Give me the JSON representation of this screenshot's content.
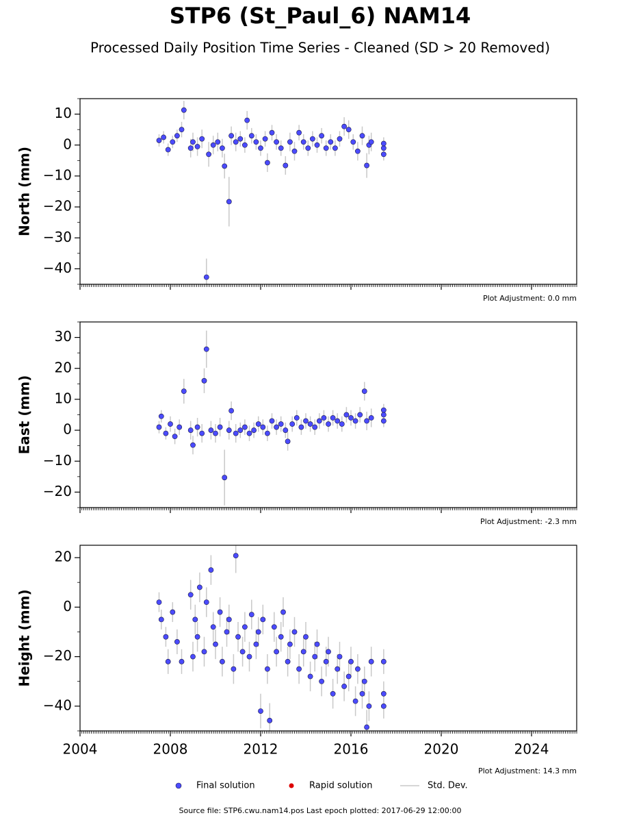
{
  "title": "STP6 (St_Paul_6) NAM14",
  "subtitle": "Processed Daily Position Time Series - Cleaned (SD > 20 Removed)",
  "legend": [
    {
      "name": "Final solution",
      "color": "#4b4bff",
      "marker": "circle"
    },
    {
      "name": "Rapid solution",
      "color": "#dd0000",
      "marker": "dot"
    },
    {
      "name": "Std. Dev.",
      "color": "#c8c8c8",
      "marker": "line"
    }
  ],
  "source": "Source file: STP6.cwu.nam14.pos  Last epoch plotted: 2017-06-29 12:00:00",
  "chart_data": [
    {
      "type": "scatter",
      "ylabel": "North (mm)",
      "annotation": "Plot Adjustment: 0.0 mm",
      "xlim": [
        2004,
        2026
      ],
      "xticks": [
        2004,
        2008,
        2012,
        2016,
        2020,
        2024
      ],
      "show_xtick_labels": false,
      "ylim": [
        -45,
        15
      ],
      "yticks": [
        -40,
        -30,
        -20,
        -10,
        0,
        10
      ],
      "series": [
        {
          "color": "#4b4bff",
          "error_color": "#c8c8c8",
          "x": [
            2007.5,
            2007.7,
            2007.9,
            2008.1,
            2008.3,
            2008.5,
            2008.6,
            2008.9,
            2009.0,
            2009.2,
            2009.4,
            2009.6,
            2009.7,
            2009.9,
            2010.1,
            2010.3,
            2010.4,
            2010.6,
            2010.7,
            2010.9,
            2011.1,
            2011.3,
            2011.4,
            2011.6,
            2011.8,
            2012.0,
            2012.2,
            2012.3,
            2012.5,
            2012.7,
            2012.9,
            2013.1,
            2013.3,
            2013.5,
            2013.7,
            2013.9,
            2014.1,
            2014.3,
            2014.5,
            2014.7,
            2014.9,
            2015.1,
            2015.3,
            2015.5,
            2015.7,
            2015.9,
            2016.1,
            2016.3,
            2016.5,
            2016.7,
            2016.8,
            2016.9,
            2017.45,
            2017.45,
            2017.45
          ],
          "values": [
            1.5,
            2.5,
            -1.5,
            1,
            3,
            5,
            11.3,
            -1,
            1,
            -0.5,
            2,
            -42.7,
            -3,
            0,
            1,
            -1,
            -6.8,
            -18.3,
            3,
            1,
            2,
            0,
            8,
            3,
            1,
            -1,
            2,
            -5.7,
            4,
            1,
            -1,
            -6.6,
            1,
            -2,
            4,
            1,
            -1,
            2,
            0,
            3,
            -1,
            1,
            -1,
            2,
            6,
            5,
            1,
            -2,
            3,
            -6.6,
            0,
            1,
            -1,
            -3,
            0.5
          ],
          "errors": [
            2,
            2,
            2,
            2,
            2,
            2.5,
            3,
            3,
            3,
            3,
            3,
            6,
            4,
            3,
            3,
            3,
            4,
            8,
            3,
            3,
            2.5,
            2.5,
            3,
            2.5,
            2.5,
            2.5,
            2.5,
            3,
            2.5,
            2.5,
            2.5,
            3,
            3,
            3,
            2.5,
            2.5,
            2.5,
            2.5,
            2.5,
            2.5,
            2.5,
            2.5,
            2.5,
            2.5,
            3,
            3,
            2.5,
            3,
            3,
            4,
            3,
            3,
            2,
            2,
            2
          ]
        }
      ]
    },
    {
      "type": "scatter",
      "ylabel": "East (mm)",
      "annotation": "Plot Adjustment: -2.3 mm",
      "xlim": [
        2004,
        2026
      ],
      "xticks": [
        2004,
        2008,
        2012,
        2016,
        2020,
        2024
      ],
      "show_xtick_labels": false,
      "ylim": [
        -25,
        35
      ],
      "yticks": [
        -20,
        -10,
        0,
        10,
        20,
        30
      ],
      "series": [
        {
          "color": "#4b4bff",
          "error_color": "#c8c8c8",
          "x": [
            2007.5,
            2007.6,
            2007.8,
            2008.0,
            2008.2,
            2008.4,
            2008.6,
            2008.9,
            2009.0,
            2009.2,
            2009.4,
            2009.5,
            2009.6,
            2009.8,
            2010.0,
            2010.2,
            2010.4,
            2010.6,
            2010.7,
            2010.9,
            2011.1,
            2011.3,
            2011.5,
            2011.7,
            2011.9,
            2012.1,
            2012.3,
            2012.5,
            2012.7,
            2012.9,
            2013.1,
            2013.2,
            2013.4,
            2013.6,
            2013.8,
            2014.0,
            2014.2,
            2014.4,
            2014.6,
            2014.8,
            2015.0,
            2015.2,
            2015.4,
            2015.6,
            2015.8,
            2016.0,
            2016.2,
            2016.4,
            2016.6,
            2016.7,
            2016.9,
            2017.45,
            2017.45,
            2017.45
          ],
          "values": [
            1,
            4.5,
            -1,
            2,
            -2,
            1,
            12.6,
            0,
            -4.8,
            1,
            -1,
            16,
            26.2,
            0,
            -1,
            1,
            -15.3,
            0,
            6.3,
            -1,
            0,
            1,
            -1,
            0,
            2,
            1,
            -1,
            3,
            1,
            2,
            0,
            -3.6,
            2,
            4,
            1,
            3,
            2,
            1,
            3,
            4,
            2,
            4,
            3,
            2,
            5,
            4,
            3,
            5,
            12.6,
            3,
            4,
            6.5,
            3,
            5
          ],
          "errors": [
            2,
            2,
            2,
            2.5,
            2.5,
            2.5,
            4,
            3,
            3,
            3,
            3,
            4,
            6,
            3,
            3,
            3,
            9,
            3,
            3,
            3,
            2.5,
            2.5,
            2.5,
            2.5,
            2.5,
            2.5,
            2.5,
            2.5,
            2.5,
            2.5,
            2.5,
            3,
            2.5,
            2.5,
            2.5,
            2.5,
            2.5,
            2.5,
            2.5,
            2.5,
            2.5,
            2.5,
            2.5,
            2.5,
            2.5,
            2.5,
            2.5,
            2.5,
            3,
            3,
            3,
            2,
            2,
            2
          ]
        }
      ]
    },
    {
      "type": "scatter",
      "ylabel": "Height (mm)",
      "annotation": "Plot Adjustment: 14.3 mm",
      "xlim": [
        2004,
        2026
      ],
      "xticks": [
        2004,
        2008,
        2012,
        2016,
        2020,
        2024
      ],
      "show_xtick_labels": true,
      "ylim": [
        -50,
        25
      ],
      "yticks": [
        -40,
        -20,
        0,
        20
      ],
      "series": [
        {
          "color": "#4b4bff",
          "error_color": "#c8c8c8",
          "x": [
            2007.5,
            2007.6,
            2007.8,
            2007.9,
            2008.1,
            2008.3,
            2008.5,
            2008.9,
            2009.0,
            2009.1,
            2009.2,
            2009.3,
            2009.5,
            2009.6,
            2009.8,
            2009.9,
            2010.0,
            2010.2,
            2010.3,
            2010.5,
            2010.6,
            2010.8,
            2010.9,
            2011.0,
            2011.2,
            2011.3,
            2011.5,
            2011.6,
            2011.8,
            2011.9,
            2012.0,
            2012.1,
            2012.3,
            2012.4,
            2012.6,
            2012.7,
            2012.9,
            2013.0,
            2013.2,
            2013.3,
            2013.5,
            2013.7,
            2013.9,
            2014.0,
            2014.2,
            2014.4,
            2014.5,
            2014.7,
            2014.9,
            2015.0,
            2015.2,
            2015.4,
            2015.5,
            2015.7,
            2015.9,
            2016.0,
            2016.2,
            2016.3,
            2016.5,
            2016.6,
            2016.7,
            2016.8,
            2016.9,
            2017.45,
            2017.45,
            2017.45
          ],
          "values": [
            2,
            -5,
            -12,
            -22,
            -2,
            -14,
            -22,
            5,
            -20,
            -5,
            -12,
            8,
            -18,
            2,
            15,
            -8,
            -15,
            -2,
            -22,
            -10,
            -5,
            -25,
            20.8,
            -12,
            -18,
            -8,
            -20,
            -3,
            -15,
            -10,
            -42,
            -5,
            -25,
            -45.8,
            -8,
            -18,
            -12,
            -2,
            -22,
            -15,
            -10,
            -25,
            -18,
            -12,
            -28,
            -20,
            -15,
            -30,
            -22,
            -18,
            -35,
            -25,
            -20,
            -32,
            -28,
            -22,
            -38,
            -25,
            -35,
            -30,
            -48.5,
            -40,
            -22,
            -22,
            -35,
            -40
          ],
          "errors": [
            4,
            4,
            4,
            5,
            4,
            5,
            5,
            6,
            6,
            6,
            6,
            6,
            6,
            6,
            6,
            6,
            6,
            6,
            6,
            6,
            6,
            6,
            7,
            6,
            6,
            6,
            6,
            6,
            6,
            6,
            7,
            6,
            6,
            7,
            6,
            6,
            6,
            6,
            6,
            6,
            6,
            6,
            6,
            6,
            6,
            6,
            6,
            6,
            6,
            6,
            6,
            6,
            6,
            6,
            6,
            6,
            6,
            6,
            6,
            6,
            7,
            6,
            6,
            5,
            5,
            5
          ]
        }
      ]
    }
  ]
}
